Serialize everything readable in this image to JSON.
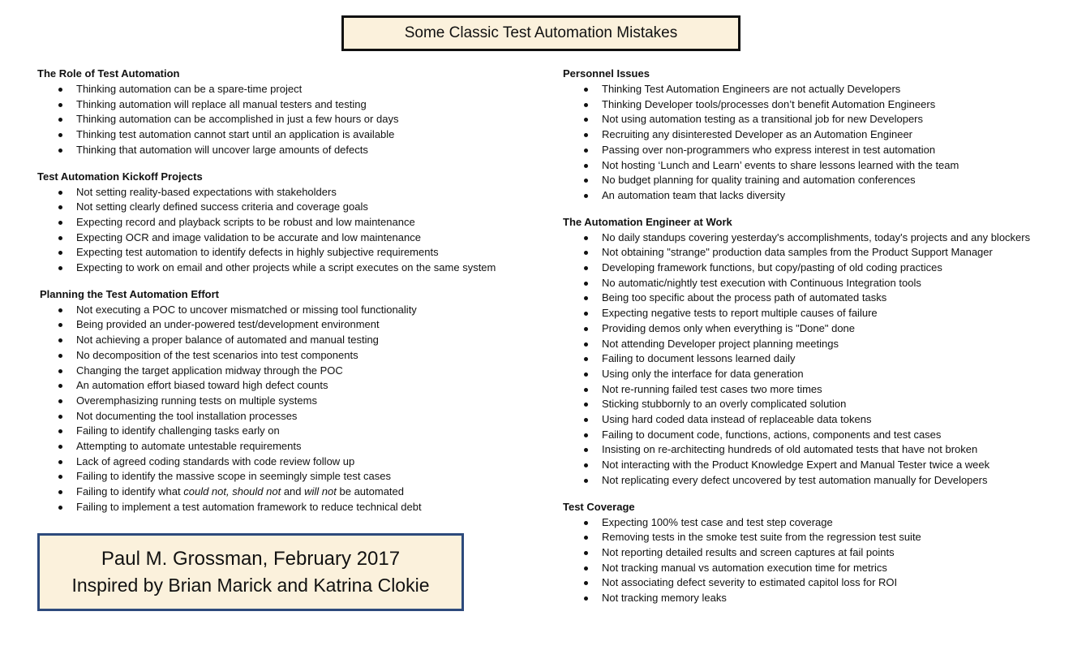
{
  "title": "Some Classic Test Automation Mistakes",
  "left_sections": [
    {
      "heading": "The Role of Test Automation",
      "items": [
        [
          "Thinking automation can be a spare-time project"
        ],
        [
          "Thinking automation will replace all manual testers and testing"
        ],
        [
          "Thinking automation can be accomplished in just a few hours or days"
        ],
        [
          "Thinking test automation cannot start until an application is available"
        ],
        [
          "Thinking that automation will uncover large amounts of defects"
        ]
      ]
    },
    {
      "heading": "Test Automation Kickoff Projects",
      "items": [
        [
          "Not setting reality-based expectations with stakeholders"
        ],
        [
          "Not setting clearly defined success criteria and coverage goals"
        ],
        [
          "Expecting record and playback scripts to be robust and low maintenance"
        ],
        [
          "Expecting OCR and image validation to be accurate and low maintenance"
        ],
        [
          "Expecting test automation to identify defects in highly subjective requirements"
        ],
        [
          "Expecting to work on email and other projects while a script executes on the same system"
        ]
      ]
    },
    {
      "heading": "Planning the Test Automation Effort",
      "items": [
        [
          "Not executing a POC to uncover mismatched or missing tool functionality"
        ],
        [
          "Being provided an under-powered test/development environment"
        ],
        [
          "Not achieving a proper balance of automated and manual testing"
        ],
        [
          "No decomposition of the test scenarios into test components"
        ],
        [
          "Changing the target application midway through the POC"
        ],
        [
          "An automation effort biased toward high defect counts"
        ],
        [
          "Overemphasizing running tests on multiple systems"
        ],
        [
          "Not documenting the tool installation processes"
        ],
        [
          "Failing to identify challenging tasks early on"
        ],
        [
          "Attempting to automate untestable requirements"
        ],
        [
          "Lack of agreed coding standards with code review follow up"
        ],
        [
          "Failing to identify the massive scope in seemingly simple test cases"
        ],
        [
          "Failing to identify what ",
          "could not, should not",
          " and ",
          "will not",
          " be automated"
        ],
        [
          "Failing to implement a test automation framework to reduce technical debt"
        ]
      ]
    }
  ],
  "right_sections": [
    {
      "heading": "Personnel Issues",
      "items": [
        [
          "Thinking Test Automation Engineers are not actually Developers"
        ],
        [
          "Thinking Developer tools/processes don’t benefit Automation Engineers"
        ],
        [
          "Not using automation testing as a transitional job for new Developers"
        ],
        [
          "Recruiting any disinterested Developer as an Automation Engineer"
        ],
        [
          "Passing over non-programmers who express interest in test automation"
        ],
        [
          "Not hosting ‘Lunch and Learn’ events to share lessons learned with the team"
        ],
        [
          "No budget planning for quality training and automation conferences"
        ],
        [
          "An automation team that lacks diversity"
        ]
      ]
    },
    {
      "heading": "The Automation Engineer at Work",
      "items": [
        [
          "No daily standups covering yesterday's accomplishments, today's projects and any blockers"
        ],
        [
          "Not obtaining \"strange\" production data samples from the Product Support Manager"
        ],
        [
          "Developing framework functions, but copy/pasting of old coding practices"
        ],
        [
          "No automatic/nightly test execution with Continuous Integration tools"
        ],
        [
          "Being too specific about the process path of automated tasks"
        ],
        [
          "Expecting negative tests to report multiple causes of failure"
        ],
        [
          "Providing demos only when everything is \"Done\" done"
        ],
        [
          "Not attending Developer project planning meetings"
        ],
        [
          "Failing to document lessons learned daily"
        ],
        [
          "Using only the interface for data generation"
        ],
        [
          "Not re-running failed test cases two more times"
        ],
        [
          "Sticking stubbornly to an overly complicated solution"
        ],
        [
          "Using hard coded data instead of replaceable data tokens"
        ],
        [
          "Failing to document code, functions, actions, components and test cases"
        ],
        [
          "Insisting on re-architecting hundreds of old automated tests that have not broken"
        ],
        [
          "Not interacting with the Product Knowledge Expert and Manual Tester twice a week"
        ],
        [
          "Not replicating every defect uncovered by test automation manually for Developers"
        ]
      ]
    },
    {
      "heading": "Test Coverage",
      "items": [
        [
          "Expecting 100% test case and test step coverage"
        ],
        [
          "Removing tests in the smoke test suite from the regression test suite"
        ],
        [
          "Not reporting detailed results and screen captures at fail points"
        ],
        [
          "Not tracking manual vs automation execution time for metrics"
        ],
        [
          "Not associating defect severity to estimated capitol loss for ROI"
        ],
        [
          "Not tracking memory leaks"
        ]
      ]
    }
  ],
  "credit": {
    "line1": "Paul M. Grossman, February 2017",
    "line2": "Inspired by Brian Marick and Katrina Clokie"
  }
}
